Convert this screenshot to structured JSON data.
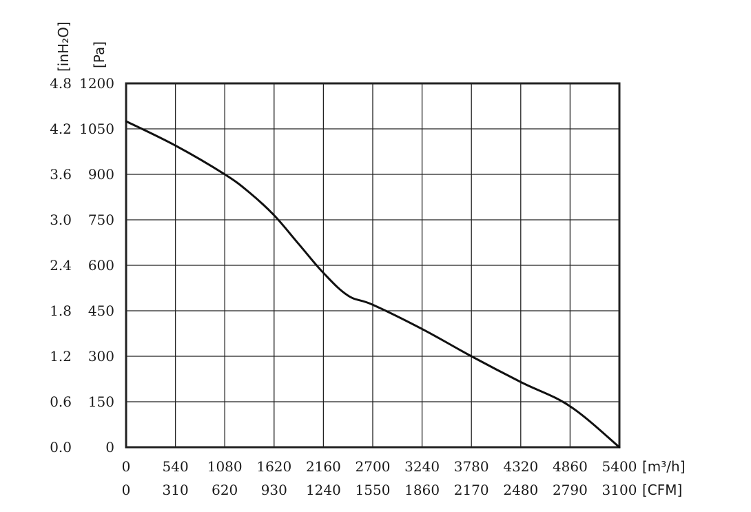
{
  "chart_data": {
    "type": "line",
    "title": "",
    "x_primary": {
      "unit_label": "[m³/h]",
      "ticks": [
        "0",
        "540",
        "1080",
        "1620",
        "2160",
        "2700",
        "3240",
        "3780",
        "4320",
        "4860",
        "5400"
      ],
      "range": [
        0,
        5400
      ]
    },
    "x_secondary": {
      "unit_label": "[CFM]",
      "ticks": [
        "0",
        "310",
        "620",
        "930",
        "1240",
        "1550",
        "1860",
        "2170",
        "2480",
        "2790",
        "3100"
      ]
    },
    "y_primary": {
      "unit_label": "[Pa]",
      "ticks": [
        "0",
        "150",
        "300",
        "450",
        "600",
        "750",
        "900",
        "1050",
        "1200"
      ],
      "range": [
        0,
        1200
      ]
    },
    "y_secondary": {
      "unit_label": "[inH₂O]",
      "ticks": [
        "0.0",
        "0.6",
        "1.2",
        "1.8",
        "2.4",
        "3.0",
        "3.6",
        "4.2",
        "4.8"
      ]
    },
    "grid": true,
    "series": [
      {
        "x": [
          0,
          540,
          1080,
          1350,
          1620,
          1890,
          2160,
          2430,
          2700,
          3240,
          3780,
          4320,
          4860,
          5400
        ],
        "y": [
          1075,
          995,
          900,
          840,
          765,
          670,
          575,
          500,
          470,
          390,
          300,
          215,
          135,
          0
        ]
      }
    ]
  }
}
